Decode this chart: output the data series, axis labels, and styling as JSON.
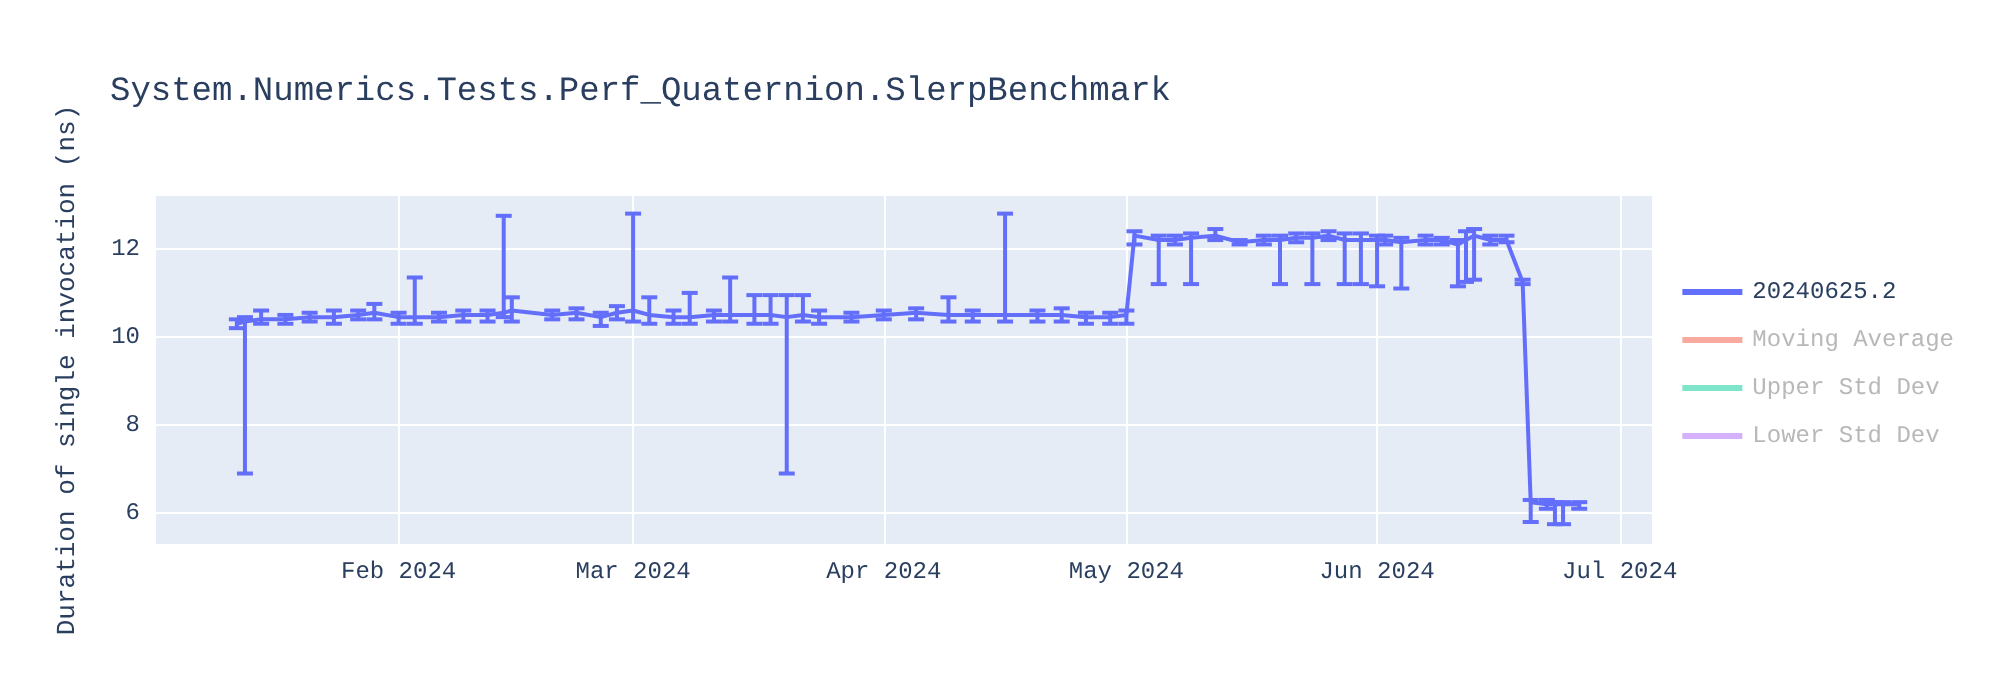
{
  "chart_data": {
    "type": "line",
    "title": "System.Numerics.Tests.Perf_Quaternion.SlerpBenchmark",
    "ylabel": "Duration of single invocation (ns)",
    "xlim": [
      "2024-01-02",
      "2024-07-05"
    ],
    "xticks": [
      {
        "value": "2024-02-01",
        "label": "Feb 2024"
      },
      {
        "value": "2024-03-01",
        "label": "Mar 2024"
      },
      {
        "value": "2024-04-01",
        "label": "Apr 2024"
      },
      {
        "value": "2024-05-01",
        "label": "May 2024"
      },
      {
        "value": "2024-06-01",
        "label": "Jun 2024"
      },
      {
        "value": "2024-07-01",
        "label": "Jul 2024"
      }
    ],
    "ylim": [
      5.3,
      13.2
    ],
    "yticks": [
      6,
      8,
      10,
      12
    ],
    "grid": true,
    "legend": "top right",
    "marker": "none",
    "line_style": "solid",
    "x": [
      "2024-01-12",
      "2024-01-13",
      "2024-01-15",
      "2024-01-18",
      "2024-01-21",
      "2024-01-24",
      "2024-01-27",
      "2024-01-29",
      "2024-02-01",
      "2024-02-03",
      "2024-02-06",
      "2024-02-09",
      "2024-02-12",
      "2024-02-14",
      "2024-02-15",
      "2024-02-20",
      "2024-02-23",
      "2024-02-26",
      "2024-02-28",
      "2024-03-01",
      "2024-03-03",
      "2024-03-06",
      "2024-03-08",
      "2024-03-11",
      "2024-03-13",
      "2024-03-16",
      "2024-03-18",
      "2024-03-20",
      "2024-03-22",
      "2024-03-24",
      "2024-03-28",
      "2024-04-01",
      "2024-04-05",
      "2024-04-09",
      "2024-04-12",
      "2024-04-16",
      "2024-04-20",
      "2024-04-23",
      "2024-04-26",
      "2024-04-29",
      "2024-05-01",
      "2024-05-02",
      "2024-05-05",
      "2024-05-07",
      "2024-05-09",
      "2024-05-12",
      "2024-05-15",
      "2024-05-18",
      "2024-05-20",
      "2024-05-22",
      "2024-05-24",
      "2024-05-26",
      "2024-05-28",
      "2024-05-30",
      "2024-06-01",
      "2024-06-02",
      "2024-06-04",
      "2024-06-07",
      "2024-06-09",
      "2024-06-11",
      "2024-06-12",
      "2024-06-13",
      "2024-06-15",
      "2024-06-17",
      "2024-06-19",
      "2024-06-20",
      "2024-06-22",
      "2024-06-23",
      "2024-06-24",
      "2024-06-26"
    ],
    "series": [
      {
        "name": "20240625.2",
        "color": "#636efa",
        "values": [
          10.3,
          10.35,
          10.4,
          10.4,
          10.45,
          10.45,
          10.5,
          10.55,
          10.45,
          10.45,
          10.45,
          10.5,
          10.5,
          10.55,
          10.6,
          10.5,
          10.55,
          10.45,
          10.55,
          10.6,
          10.5,
          10.45,
          10.45,
          10.5,
          10.5,
          10.5,
          10.5,
          10.45,
          10.5,
          10.45,
          10.45,
          10.5,
          10.55,
          10.5,
          10.5,
          10.5,
          10.5,
          10.5,
          10.45,
          10.45,
          10.5,
          12.3,
          12.2,
          12.2,
          12.25,
          12.3,
          12.15,
          12.2,
          12.2,
          12.25,
          12.25,
          12.3,
          12.2,
          12.2,
          12.2,
          12.2,
          12.15,
          12.2,
          12.2,
          12.1,
          12.2,
          12.3,
          12.2,
          12.2,
          11.25,
          6.25,
          6.2,
          6.2,
          6.2,
          6.2
        ],
        "errors": [
          [
            10.2,
            10.4
          ],
          [
            6.9,
            10.45
          ],
          [
            10.3,
            10.6
          ],
          [
            10.3,
            10.5
          ],
          [
            10.35,
            10.55
          ],
          [
            10.3,
            10.6
          ],
          [
            10.4,
            10.6
          ],
          [
            10.4,
            10.75
          ],
          [
            10.3,
            10.55
          ],
          [
            10.3,
            11.35
          ],
          [
            10.35,
            10.55
          ],
          [
            10.35,
            10.6
          ],
          [
            10.35,
            10.6
          ],
          [
            10.45,
            12.75
          ],
          [
            10.35,
            10.9
          ],
          [
            10.4,
            10.6
          ],
          [
            10.4,
            10.65
          ],
          [
            10.25,
            10.55
          ],
          [
            10.4,
            10.7
          ],
          [
            10.35,
            12.8
          ],
          [
            10.3,
            10.9
          ],
          [
            10.3,
            10.6
          ],
          [
            10.3,
            11.0
          ],
          [
            10.35,
            10.6
          ],
          [
            10.35,
            11.35
          ],
          [
            10.3,
            10.95
          ],
          [
            10.3,
            10.95
          ],
          [
            6.9,
            10.95
          ],
          [
            10.35,
            10.95
          ],
          [
            10.3,
            10.6
          ],
          [
            10.35,
            10.55
          ],
          [
            10.4,
            10.6
          ],
          [
            10.4,
            10.65
          ],
          [
            10.35,
            10.9
          ],
          [
            10.35,
            10.6
          ],
          [
            10.35,
            12.8
          ],
          [
            10.35,
            10.6
          ],
          [
            10.35,
            10.65
          ],
          [
            10.3,
            10.55
          ],
          [
            10.3,
            10.55
          ],
          [
            10.3,
            10.6
          ],
          [
            12.1,
            12.4
          ],
          [
            11.2,
            12.3
          ],
          [
            12.1,
            12.3
          ],
          [
            11.2,
            12.35
          ],
          [
            12.2,
            12.45
          ],
          [
            12.1,
            12.2
          ],
          [
            12.1,
            12.3
          ],
          [
            11.2,
            12.3
          ],
          [
            12.15,
            12.35
          ],
          [
            11.2,
            12.35
          ],
          [
            12.2,
            12.4
          ],
          [
            11.2,
            12.35
          ],
          [
            11.2,
            12.35
          ],
          [
            11.15,
            12.3
          ],
          [
            12.1,
            12.3
          ],
          [
            11.1,
            12.25
          ],
          [
            12.1,
            12.3
          ],
          [
            12.1,
            12.25
          ],
          [
            11.15,
            12.2
          ],
          [
            11.25,
            12.4
          ],
          [
            11.3,
            12.45
          ],
          [
            12.1,
            12.3
          ],
          [
            12.15,
            12.3
          ],
          [
            11.2,
            11.3
          ],
          [
            5.8,
            6.3
          ],
          [
            6.1,
            6.3
          ],
          [
            5.75,
            6.25
          ],
          [
            5.75,
            6.25
          ],
          [
            6.1,
            6.25
          ]
        ]
      },
      {
        "name": "Moving Average",
        "color": "#ef553b",
        "values": [
          null,
          null,
          null,
          null,
          null,
          null,
          null,
          null,
          null,
          null,
          null,
          null,
          null,
          null,
          null,
          null,
          null,
          null,
          null,
          null,
          null,
          null,
          null,
          null,
          null,
          null,
          null,
          null,
          null,
          null,
          null,
          null,
          null,
          null,
          null,
          null,
          null,
          null,
          null,
          null,
          null,
          null,
          null,
          null,
          null,
          null,
          null,
          null,
          null,
          null,
          null,
          null,
          null,
          null,
          null,
          null,
          null,
          null,
          null,
          null,
          null,
          null,
          null,
          null,
          null,
          null,
          null,
          null,
          null,
          null
        ]
      },
      {
        "name": "Upper Std Dev",
        "color": "#00cc96",
        "values": [
          null,
          null,
          null,
          null,
          null,
          null,
          null,
          null,
          null,
          null,
          null,
          null,
          null,
          null,
          null,
          null,
          null,
          null,
          null,
          null,
          null,
          null,
          null,
          null,
          null,
          null,
          null,
          null,
          null,
          null,
          null,
          null,
          null,
          null,
          null,
          null,
          null,
          null,
          null,
          null,
          null,
          null,
          null,
          null,
          null,
          null,
          null,
          null,
          null,
          null,
          null,
          null,
          null,
          null,
          null,
          null,
          null,
          null,
          null,
          null,
          null,
          null,
          null,
          null,
          null,
          null,
          null,
          null,
          null,
          null
        ]
      },
      {
        "name": "Lower Std Dev",
        "color": "#ab63fa",
        "values": [
          null,
          null,
          null,
          null,
          null,
          null,
          null,
          null,
          null,
          null,
          null,
          null,
          null,
          null,
          null,
          null,
          null,
          null,
          null,
          null,
          null,
          null,
          null,
          null,
          null,
          null,
          null,
          null,
          null,
          null,
          null,
          null,
          null,
          null,
          null,
          null,
          null,
          null,
          null,
          null,
          null,
          null,
          null,
          null,
          null,
          null,
          null,
          null,
          null,
          null,
          null,
          null,
          null,
          null,
          null,
          null,
          null,
          null,
          null,
          null,
          null,
          null,
          null,
          null,
          null,
          null,
          null,
          null,
          null,
          null
        ]
      }
    ]
  }
}
